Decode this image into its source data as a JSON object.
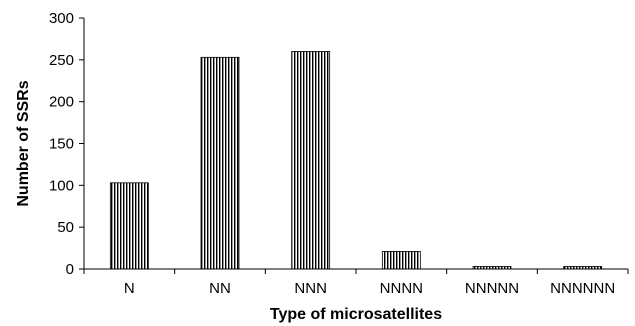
{
  "chart_data": {
    "type": "bar",
    "categories": [
      "N",
      "NN",
      "NNN",
      "NNNN",
      "NNNNN",
      "NNNNNN"
    ],
    "values": [
      103,
      253,
      260,
      21,
      3,
      3
    ],
    "title": "",
    "xlabel": "Type of microsatellites",
    "ylabel": "Number of  SSRs",
    "ylim": [
      0,
      300
    ],
    "yticks": [
      0,
      50,
      100,
      150,
      200,
      250,
      300
    ],
    "grid": false,
    "bar_pattern": "vertical-stripes",
    "colors": {
      "stripe": "#000000",
      "background": "#ffffff",
      "axis": "#000000"
    }
  }
}
